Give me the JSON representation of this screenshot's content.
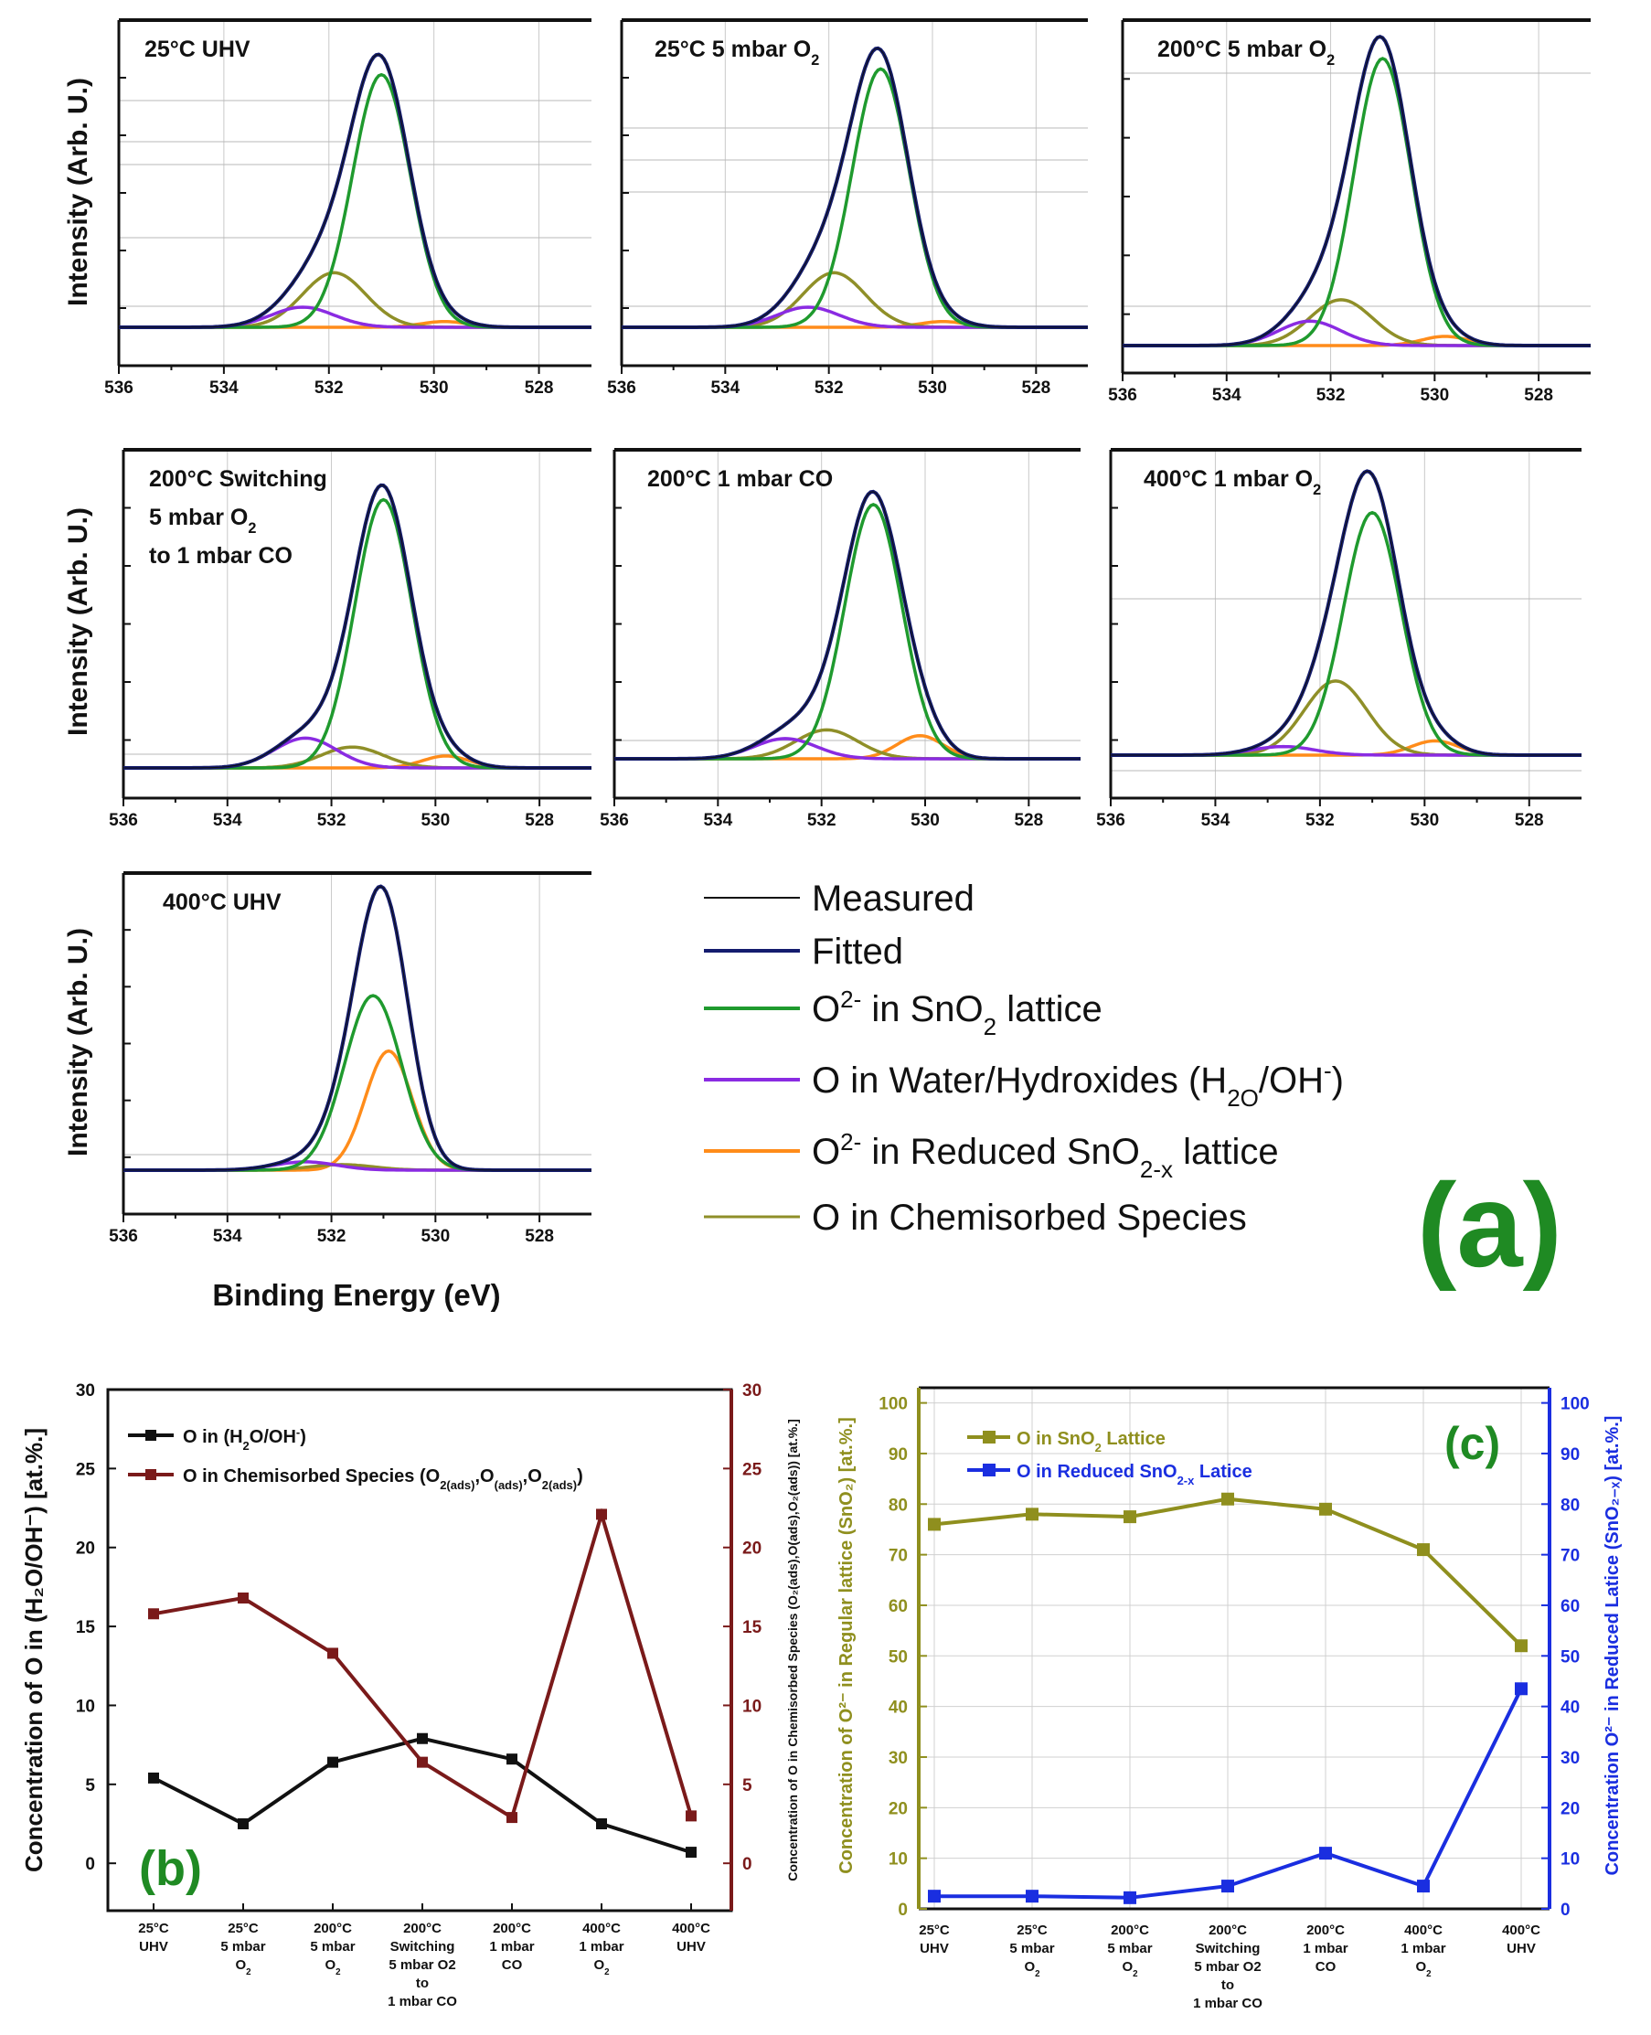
{
  "chart_data": [
    {
      "type": "line",
      "panel": "(a)",
      "xlabel": "Binding Energy (eV)",
      "ylabel": "Intensity (Arb. U.)",
      "xlim": [
        536,
        527
      ],
      "x_ticks": [
        "536",
        "534",
        "532",
        "530",
        "528"
      ],
      "legend": [
        {
          "name": "Measured",
          "color": "#111111"
        },
        {
          "name": "Fitted",
          "color": "#141c6e"
        },
        {
          "name": "O^2- in SnO_2 lattice",
          "color": "#1f9a2e"
        },
        {
          "name": "O in Water/Hydroxides (H_2O/OH^-)",
          "color": "#8a2be2"
        },
        {
          "name": "O^2- in Reduced SnO_2-x lattice",
          "color": "#ff8c1a"
        },
        {
          "name": "O in Chemisorbed Species",
          "color": "#8f8f28"
        }
      ],
      "panel_label": "(a)",
      "subplots": [
        {
          "title": "25°C  UHV",
          "peaks": {
            "lattice": {
              "center": 531.0,
              "amp": 0.88
            },
            "water": {
              "center": 532.5,
              "amp": 0.07
            },
            "reduced": {
              "center": 529.8,
              "amp": 0.02
            },
            "chemisorbed": {
              "center": 531.9,
              "amp": 0.19
            }
          }
        },
        {
          "title": "25°C 5 mbar O2",
          "peaks": {
            "lattice": {
              "center": 531.0,
              "amp": 0.9
            },
            "water": {
              "center": 532.4,
              "amp": 0.07
            },
            "reduced": {
              "center": 529.8,
              "amp": 0.02
            },
            "chemisorbed": {
              "center": 531.9,
              "amp": 0.19
            }
          }
        },
        {
          "title": "200°C 5 mbar O2",
          "peaks": {
            "lattice": {
              "center": 531.0,
              "amp": 0.94
            },
            "water": {
              "center": 532.4,
              "amp": 0.08
            },
            "reduced": {
              "center": 529.8,
              "amp": 0.03
            },
            "chemisorbed": {
              "center": 531.8,
              "amp": 0.15
            }
          }
        },
        {
          "title": "200°C Switching",
          "title2": "5 mbar O2",
          "title3": "to 1 mbar CO",
          "peaks": {
            "lattice": {
              "center": 531.0,
              "amp": 0.9
            },
            "water": {
              "center": 532.5,
              "amp": 0.1
            },
            "reduced": {
              "center": 529.8,
              "amp": 0.04
            },
            "chemisorbed": {
              "center": 531.6,
              "amp": 0.07
            }
          }
        },
        {
          "title": "200°C 1 mbar CO",
          "peaks": {
            "lattice": {
              "center": 531.0,
              "amp": 0.88
            },
            "water": {
              "center": 532.7,
              "amp": 0.07
            },
            "reduced": {
              "center": 530.1,
              "amp": 0.08
            },
            "chemisorbed": {
              "center": 531.9,
              "amp": 0.1
            }
          }
        },
        {
          "title": "400°C 1 mbar O2",
          "peaks": {
            "lattice": {
              "center": 531.0,
              "amp": 0.85
            },
            "water": {
              "center": 532.7,
              "amp": 0.03
            },
            "reduced": {
              "center": 529.8,
              "amp": 0.05
            },
            "chemisorbed": {
              "center": 531.7,
              "amp": 0.26
            }
          }
        },
        {
          "title": "400°C UHV",
          "peaks": {
            "lattice": {
              "center": 531.2,
              "amp": 0.63
            },
            "water": {
              "center": 532.5,
              "amp": 0.03
            },
            "reduced": {
              "center": 530.9,
              "amp": 0.43
            },
            "chemisorbed": {
              "center": 531.8,
              "amp": 0.02
            }
          }
        }
      ]
    },
    {
      "type": "line",
      "panel": "(b)",
      "panel_label": "(b)",
      "categories": [
        [
          "25°C",
          "UHV"
        ],
        [
          "25°C",
          "5 mbar",
          "O2"
        ],
        [
          "200°C",
          "5 mbar",
          "O2"
        ],
        [
          "200°C",
          "Switching",
          "5 mbar O2",
          "to",
          "1 mbar CO"
        ],
        [
          "200°C",
          "1 mbar",
          "CO"
        ],
        [
          "400°C",
          "1 mbar",
          "O2"
        ],
        [
          "400°C",
          "UHV"
        ]
      ],
      "ylabel": "Concentration of O in (H2O/OH-) [at.%.]",
      "ylabel_right": "Concentration of O in Chemisorbed Species (O2(ads),O(ads),O2(ads)) [at.%.]",
      "ylim": [
        -3,
        30
      ],
      "ylim_right": [
        -3,
        30
      ],
      "y_ticks": [
        "0",
        "5",
        "10",
        "15",
        "20",
        "25",
        "30"
      ],
      "series": [
        {
          "name": "O in (H2O/OH-)",
          "color": "#111111",
          "values": [
            5.4,
            2.5,
            6.4,
            7.9,
            6.6,
            2.5,
            0.7
          ]
        },
        {
          "name": "O in Chemisorbed Species (O2(ads),O(ads),O2(ads))",
          "color": "#7a1a1a",
          "values": [
            15.8,
            16.8,
            13.3,
            6.4,
            2.9,
            22.1,
            3.0
          ]
        }
      ]
    },
    {
      "type": "line",
      "panel": "(c)",
      "panel_label": "(c)",
      "categories": [
        [
          "25°C",
          "UHV"
        ],
        [
          "25°C",
          "5 mbar",
          "O2"
        ],
        [
          "200°C",
          "5 mbar",
          "O2"
        ],
        [
          "200°C",
          "Switching",
          "5 mbar O2",
          "to",
          "1 mbar CO"
        ],
        [
          "200°C",
          "1 mbar",
          "CO"
        ],
        [
          "400°C",
          "1 mbar",
          "O2"
        ],
        [
          "400°C",
          "UHV"
        ]
      ],
      "ylabel": "Concentration of O2- in Regular lattice (SnO2) [at.%.]",
      "ylabel_right": "Concentration  O2- in Reduced Latice (SnO2-x) [at.%.]",
      "ylim": [
        0,
        103
      ],
      "ylim_right": [
        0,
        103
      ],
      "y_ticks": [
        "0",
        "10",
        "20",
        "30",
        "40",
        "50",
        "60",
        "70",
        "80",
        "90",
        "100"
      ],
      "series": [
        {
          "name": "O in SnO2 Lattice",
          "color": "#8f8f1e",
          "values": [
            76,
            78,
            77.5,
            81,
            79,
            71,
            52
          ]
        },
        {
          "name": "O in Reduced SnO2-x Latice",
          "color": "#1a2ee0",
          "values": [
            2.5,
            2.5,
            2.2,
            4.5,
            11,
            4.5,
            43.5
          ]
        }
      ]
    }
  ]
}
